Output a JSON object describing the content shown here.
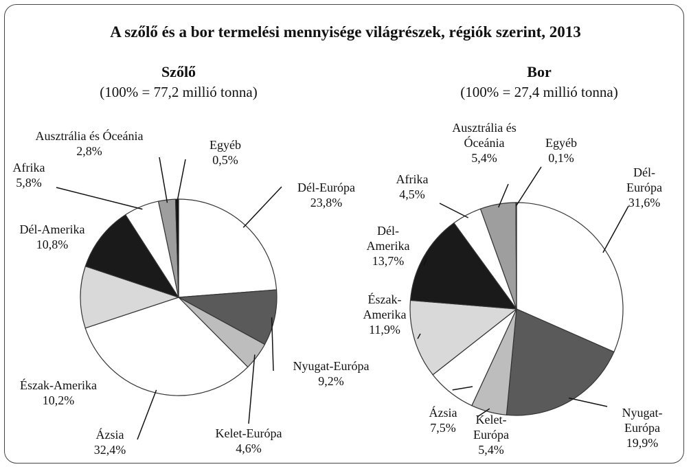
{
  "title": "A szőlő és a bor termelési mennyisége világrészek, régiók szerint, 2013",
  "chart_data": [
    {
      "type": "pie",
      "title": "Szőlő",
      "subtitle": "(100% = 77,2 millió tonna)",
      "categories": [
        "Dél-Európa",
        "Nyugat-Európa",
        "Kelet-Európa",
        "Ázsia",
        "Észak-Amerika",
        "Dél-Amerika",
        "Afrika",
        "Ausztrália és Óceánia",
        "Egyéb"
      ],
      "values": [
        23.8,
        9.2,
        4.6,
        32.4,
        10.2,
        10.8,
        5.8,
        2.8,
        0.5
      ],
      "value_labels": [
        "23,8%",
        "9,2%",
        "4,6%",
        "32,4%",
        "10,2%",
        "10,8%",
        "5,8%",
        "2,8%",
        "0,5%"
      ],
      "colors": [
        "#ffffff",
        "#5a5a5a",
        "#bdbdbd",
        "#ffffff",
        "#d9d9d9",
        "#1a1a1a",
        "#ffffff",
        "#9e9e9e",
        "#111111"
      ]
    },
    {
      "type": "pie",
      "title": "Bor",
      "subtitle": "(100% = 27,4 millió tonna)",
      "categories": [
        "Dél-Európa",
        "Nyugat-Európa",
        "Kelet-Európa",
        "Ázsia",
        "Észak-Amerika",
        "Dél-Amerika",
        "Afrika",
        "Ausztrália és Óceánia",
        "Egyéb"
      ],
      "values": [
        31.6,
        19.9,
        5.4,
        7.5,
        11.9,
        13.7,
        4.5,
        5.4,
        0.1
      ],
      "value_labels": [
        "31,6%",
        "19,9%",
        "5,4%",
        "7,5%",
        "11,9%",
        "13,7%",
        "4,5%",
        "5,4%",
        "0,1%"
      ],
      "colors": [
        "#ffffff",
        "#5a5a5a",
        "#bdbdbd",
        "#ffffff",
        "#d9d9d9",
        "#1a1a1a",
        "#ffffff",
        "#9e9e9e",
        "#111111"
      ]
    }
  ]
}
